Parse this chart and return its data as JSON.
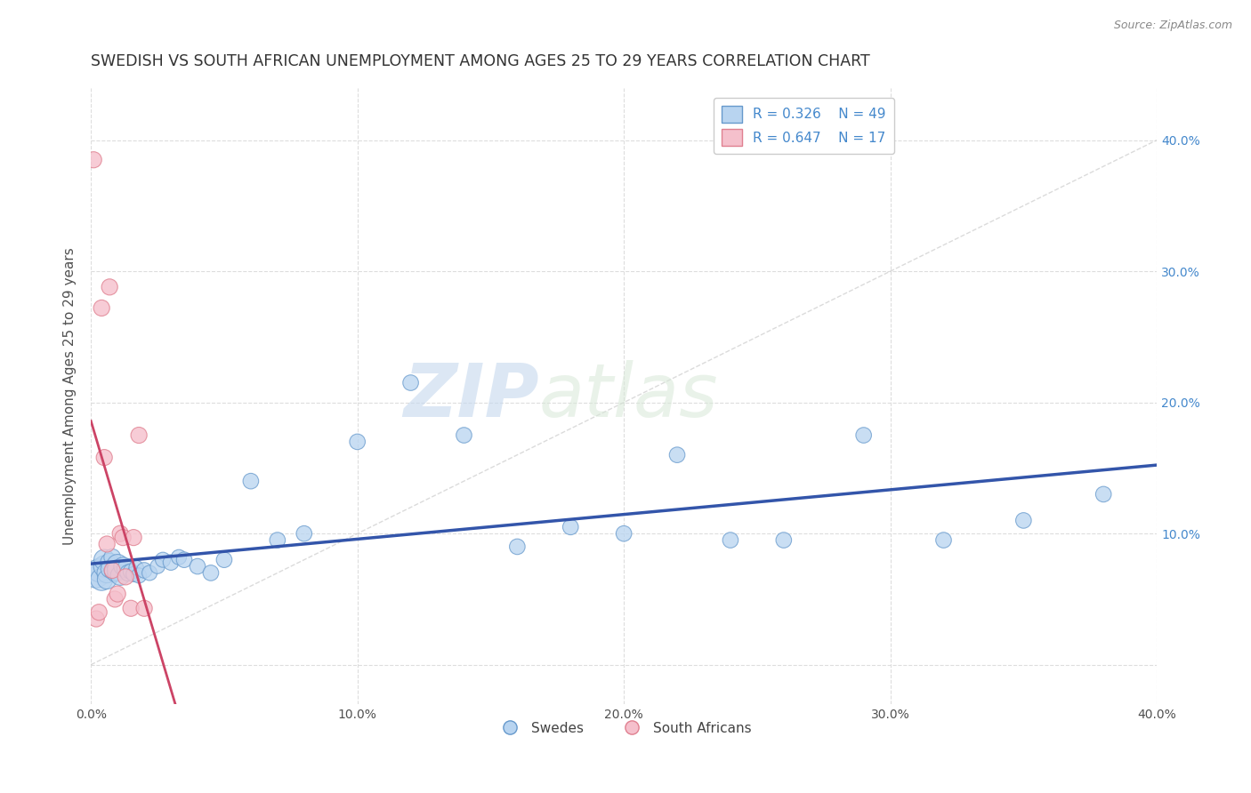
{
  "title": "SWEDISH VS SOUTH AFRICAN UNEMPLOYMENT AMONG AGES 25 TO 29 YEARS CORRELATION CHART",
  "source": "Source: ZipAtlas.com",
  "ylabel": "Unemployment Among Ages 25 to 29 years",
  "xlim": [
    0.0,
    0.4
  ],
  "ylim": [
    -0.03,
    0.44
  ],
  "legend_r1": "R = 0.326",
  "legend_n1": "N = 49",
  "legend_r2": "R = 0.647",
  "legend_n2": "N = 17",
  "legend_label1": "Swedes",
  "legend_label2": "South Africans",
  "blue_face": "#b8d4f0",
  "blue_edge": "#6699cc",
  "pink_face": "#f5c0cc",
  "pink_edge": "#e08090",
  "blue_line_color": "#3355aa",
  "pink_line_color": "#cc4466",
  "ref_line_color": "#cccccc",
  "title_color": "#333333",
  "source_color": "#888888",
  "ytick_color": "#4488cc",
  "swedes_x": [
    0.002,
    0.003,
    0.004,
    0.005,
    0.005,
    0.006,
    0.006,
    0.007,
    0.007,
    0.008,
    0.008,
    0.009,
    0.009,
    0.01,
    0.01,
    0.011,
    0.012,
    0.013,
    0.014,
    0.015,
    0.016,
    0.017,
    0.018,
    0.02,
    0.022,
    0.025,
    0.027,
    0.03,
    0.033,
    0.035,
    0.04,
    0.045,
    0.05,
    0.06,
    0.07,
    0.08,
    0.1,
    0.12,
    0.14,
    0.16,
    0.18,
    0.2,
    0.22,
    0.24,
    0.26,
    0.29,
    0.32,
    0.35,
    0.38
  ],
  "swedes_y": [
    0.068,
    0.072,
    0.065,
    0.075,
    0.08,
    0.07,
    0.065,
    0.078,
    0.073,
    0.082,
    0.071,
    0.069,
    0.074,
    0.076,
    0.072,
    0.068,
    0.075,
    0.073,
    0.07,
    0.071,
    0.069,
    0.074,
    0.068,
    0.072,
    0.07,
    0.075,
    0.08,
    0.078,
    0.082,
    0.08,
    0.075,
    0.07,
    0.08,
    0.14,
    0.095,
    0.1,
    0.17,
    0.215,
    0.175,
    0.09,
    0.105,
    0.1,
    0.16,
    0.095,
    0.095,
    0.175,
    0.095,
    0.11,
    0.13
  ],
  "swedes_sizes": [
    400,
    350,
    320,
    300,
    280,
    260,
    240,
    220,
    200,
    180,
    160,
    150,
    140,
    300,
    280,
    250,
    220,
    200,
    180,
    160,
    150,
    140,
    150,
    160,
    150,
    140,
    150,
    160,
    150,
    160,
    160,
    160,
    160,
    160,
    160,
    160,
    160,
    160,
    160,
    160,
    160,
    160,
    160,
    160,
    160,
    160,
    160,
    160,
    160
  ],
  "sa_x": [
    0.001,
    0.002,
    0.003,
    0.004,
    0.005,
    0.006,
    0.007,
    0.008,
    0.009,
    0.01,
    0.011,
    0.012,
    0.013,
    0.015,
    0.016,
    0.018,
    0.02
  ],
  "sa_y": [
    0.385,
    0.035,
    0.04,
    0.272,
    0.158,
    0.092,
    0.288,
    0.072,
    0.05,
    0.054,
    0.1,
    0.097,
    0.067,
    0.043,
    0.097,
    0.175,
    0.043
  ],
  "sa_sizes": [
    170,
    170,
    170,
    170,
    170,
    170,
    170,
    170,
    170,
    170,
    170,
    170,
    170,
    170,
    170,
    170,
    170
  ],
  "watermark_left": "ZIP",
  "watermark_right": "atlas",
  "grid_color": "#dddddd"
}
